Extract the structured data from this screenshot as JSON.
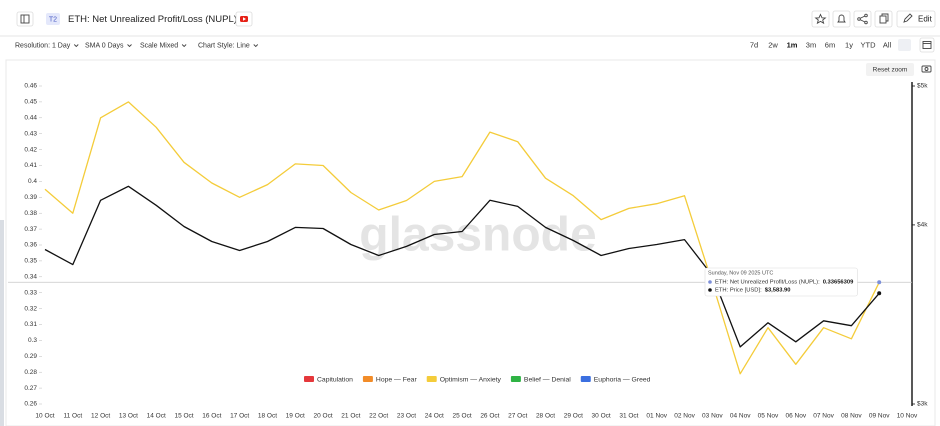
{
  "header": {
    "badge": "T2",
    "title": "ETH: Net Unrealized Profit/Loss (NUPL)",
    "edit": "Edit"
  },
  "toolbar": {
    "options": [
      "Resolution: 1 Day",
      "SMA 0 Days",
      "Scale Mixed",
      "Chart Style: Line"
    ],
    "ranges": [
      "7d",
      "2w",
      "1m",
      "3m",
      "6m",
      "1y",
      "YTD",
      "All"
    ],
    "reset_zoom": "Reset zoom"
  },
  "chart_data": {
    "type": "line",
    "watermark": "glassnode",
    "categories": [
      "10 Oct",
      "11 Oct",
      "12 Oct",
      "13 Oct",
      "14 Oct",
      "15 Oct",
      "16 Oct",
      "17 Oct",
      "18 Oct",
      "19 Oct",
      "20 Oct",
      "21 Oct",
      "22 Oct",
      "23 Oct",
      "24 Oct",
      "25 Oct",
      "26 Oct",
      "27 Oct",
      "28 Oct",
      "29 Oct",
      "30 Oct",
      "31 Oct",
      "01 Nov",
      "02 Nov",
      "03 Nov",
      "04 Nov",
      "05 Nov",
      "06 Nov",
      "07 Nov",
      "08 Nov",
      "09 Nov",
      "10 Nov"
    ],
    "series": [
      {
        "color": "#f4cc3a",
        "values": [
          0.395,
          0.38,
          0.44,
          0.45,
          0.434,
          0.412,
          0.399,
          0.39,
          0.398,
          0.411,
          0.41,
          0.393,
          0.382,
          0.388,
          0.4,
          0.403,
          0.431,
          0.425,
          0.402,
          0.391,
          0.376,
          0.383,
          0.386,
          0.391,
          0.336,
          0.279,
          0.308,
          0.285,
          0.308,
          0.301,
          0.33656309,
          null
        ]
      },
      {
        "color": "#111111",
        "axis": "y2",
        "values": [
          3845,
          3753,
          4161,
          4256,
          4128,
          3990,
          3895,
          3839,
          3895,
          3984,
          3977,
          3876,
          3808,
          3864,
          3939,
          3958,
          4161,
          4121,
          3984,
          3901,
          3808,
          3851,
          3876,
          3907,
          3687,
          3288,
          3418,
          3315,
          3429,
          3402,
          3583.9,
          null
        ]
      }
    ],
    "ylim": [
      0.26,
      0.46
    ],
    "yticks": [
      0.26,
      0.27,
      0.28,
      0.29,
      0.3,
      0.31,
      0.32,
      0.33,
      0.34,
      0.35,
      0.36,
      0.37,
      0.38,
      0.39,
      0.4,
      0.41,
      0.42,
      0.43,
      0.44,
      0.45,
      0.46
    ],
    "y2lim": [
      3000,
      5000
    ],
    "y2log": true,
    "y2ticks": [
      {
        "value": 3000,
        "label": "$3k"
      },
      {
        "value": 4000,
        "label": "$4k"
      },
      {
        "value": 5000,
        "label": "$5k"
      }
    ],
    "legend": [
      {
        "name": "Capitulation",
        "color": "#e5383b"
      },
      {
        "name": "Hope — Fear",
        "color": "#f28c28"
      },
      {
        "name": "Optimism — Anxiety",
        "color": "#f4cc3a"
      },
      {
        "name": "Belief — Denial",
        "color": "#2fb344"
      },
      {
        "name": "Euphoria — Greed",
        "color": "#3b6fe0"
      }
    ],
    "tooltip": {
      "date": "Sunday, Nov 09 2025 UTC",
      "rows": [
        {
          "label": "ETH: Net Unrealized Profit/Loss (NUPL):",
          "value": "0.33656309"
        },
        {
          "label": "ETH: Price [USD]:",
          "value": "$3,583.90"
        }
      ]
    }
  }
}
